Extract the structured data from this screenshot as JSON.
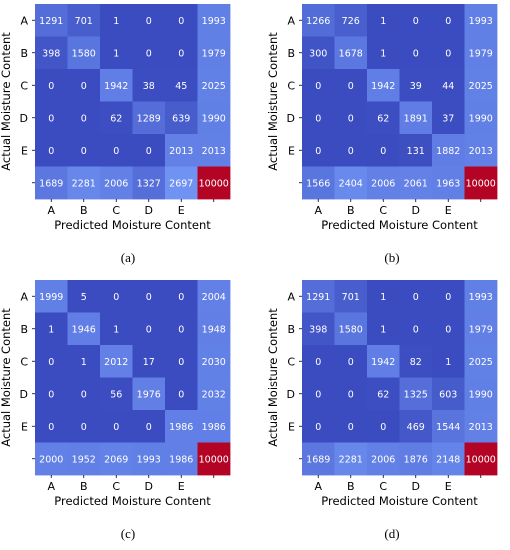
{
  "chart_data": [
    {
      "type": "heatmap",
      "caption": "(a)",
      "xlabel": "Predicted Moisture Content",
      "ylabel": "Actual Moisture Content",
      "x_categories": [
        "A",
        "B",
        "C",
        "D",
        "E",
        ""
      ],
      "y_categories": [
        "A",
        "B",
        "C",
        "D",
        "E",
        ""
      ],
      "values": [
        [
          1291,
          701,
          1,
          0,
          0,
          1993
        ],
        [
          398,
          1580,
          1,
          0,
          0,
          1979
        ],
        [
          0,
          0,
          1942,
          38,
          45,
          2025
        ],
        [
          0,
          0,
          62,
          1289,
          639,
          1990
        ],
        [
          0,
          0,
          0,
          0,
          2013,
          2013
        ],
        [
          1689,
          2281,
          2006,
          1327,
          2697,
          10000
        ]
      ]
    },
    {
      "type": "heatmap",
      "caption": "(b)",
      "xlabel": "Predicted Moisture Content",
      "ylabel": "Actual Moisture Content",
      "x_categories": [
        "A",
        "B",
        "C",
        "D",
        "E",
        ""
      ],
      "y_categories": [
        "A",
        "B",
        "C",
        "D",
        "E",
        ""
      ],
      "values": [
        [
          1266,
          726,
          1,
          0,
          0,
          1993
        ],
        [
          300,
          1678,
          1,
          0,
          0,
          1979
        ],
        [
          0,
          0,
          1942,
          39,
          44,
          2025
        ],
        [
          0,
          0,
          62,
          1891,
          37,
          1990
        ],
        [
          0,
          0,
          0,
          131,
          1882,
          2013
        ],
        [
          1566,
          2404,
          2006,
          2061,
          1963,
          10000
        ]
      ]
    },
    {
      "type": "heatmap",
      "caption": "(c)",
      "xlabel": "Predicted Moisture Content",
      "ylabel": "Actual Moisture Content",
      "x_categories": [
        "A",
        "B",
        "C",
        "D",
        "E",
        ""
      ],
      "y_categories": [
        "A",
        "B",
        "C",
        "D",
        "E",
        ""
      ],
      "values": [
        [
          1999,
          5,
          0,
          0,
          0,
          2004
        ],
        [
          1,
          1946,
          1,
          0,
          0,
          1948
        ],
        [
          0,
          1,
          2012,
          17,
          0,
          2030
        ],
        [
          0,
          0,
          56,
          1976,
          0,
          2032
        ],
        [
          0,
          0,
          0,
          0,
          1986,
          1986
        ],
        [
          2000,
          1952,
          2069,
          1993,
          1986,
          10000
        ]
      ]
    },
    {
      "type": "heatmap",
      "caption": "(d)",
      "xlabel": "Predicted Moisture Content",
      "ylabel": "Actual Moisture Content",
      "x_categories": [
        "A",
        "B",
        "C",
        "D",
        "E",
        ""
      ],
      "y_categories": [
        "A",
        "B",
        "C",
        "D",
        "E",
        ""
      ],
      "values": [
        [
          1291,
          701,
          1,
          0,
          0,
          1993
        ],
        [
          398,
          1580,
          1,
          0,
          0,
          1979
        ],
        [
          0,
          0,
          1942,
          82,
          1,
          2025
        ],
        [
          0,
          0,
          62,
          1325,
          603,
          1990
        ],
        [
          0,
          0,
          0,
          469,
          1544,
          2013
        ],
        [
          1689,
          2281,
          2006,
          1876,
          2148,
          10000
        ]
      ]
    }
  ],
  "colors": {
    "low": "#3b4cc0",
    "mid": "#6f92f3",
    "high": "#b40426"
  }
}
